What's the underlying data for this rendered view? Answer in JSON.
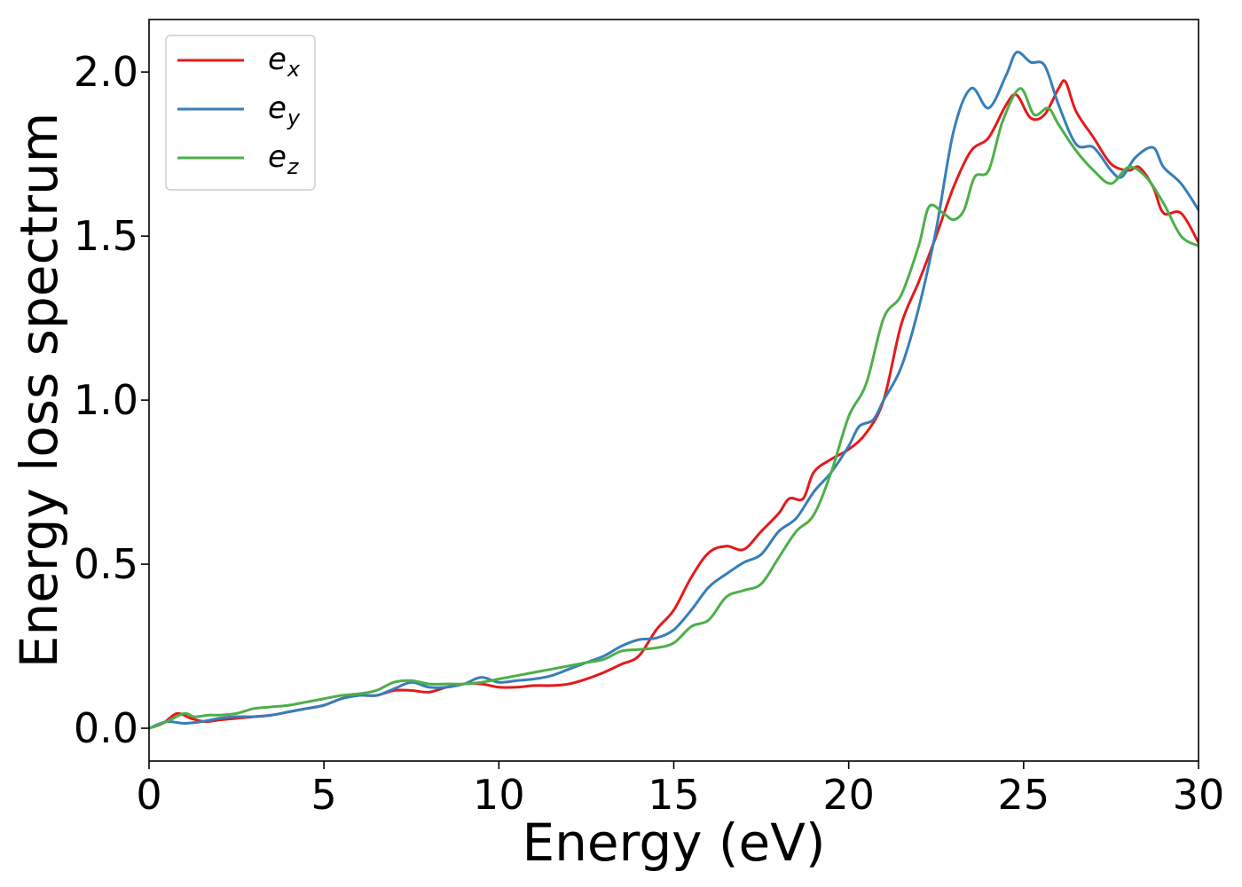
{
  "chart_data": {
    "type": "line",
    "title": "",
    "xlabel": "Energy (eV)",
    "ylabel": "Energy loss spectrum",
    "xlim": [
      0,
      30
    ],
    "ylim": [
      -0.1,
      2.16
    ],
    "xticks": [
      0,
      5,
      10,
      15,
      20,
      25,
      30
    ],
    "yticks": [
      0.0,
      0.5,
      1.0,
      1.5,
      2.0
    ],
    "xtick_labels": [
      "0",
      "5",
      "10",
      "15",
      "20",
      "25",
      "30"
    ],
    "ytick_labels": [
      "0.0",
      "0.5",
      "1.0",
      "1.5",
      "2.0"
    ],
    "grid": false,
    "legend_position": "top-left",
    "series": [
      {
        "name": "e",
        "subscript": "x",
        "color": "#e41a1c",
        "points": [
          [
            0,
            0.0
          ],
          [
            0.4,
            0.015
          ],
          [
            0.8,
            0.045
          ],
          [
            1.2,
            0.03
          ],
          [
            1.6,
            0.02
          ],
          [
            2.0,
            0.025
          ],
          [
            2.5,
            0.03
          ],
          [
            3.0,
            0.035
          ],
          [
            3.5,
            0.04
          ],
          [
            4.0,
            0.05
          ],
          [
            4.5,
            0.06
          ],
          [
            5.0,
            0.07
          ],
          [
            5.5,
            0.09
          ],
          [
            6.0,
            0.1
          ],
          [
            6.5,
            0.1
          ],
          [
            7.0,
            0.115
          ],
          [
            7.5,
            0.115
          ],
          [
            8.0,
            0.11
          ],
          [
            8.5,
            0.125
          ],
          [
            9.0,
            0.135
          ],
          [
            9.5,
            0.135
          ],
          [
            10.0,
            0.125
          ],
          [
            10.5,
            0.125
          ],
          [
            11.0,
            0.13
          ],
          [
            11.5,
            0.13
          ],
          [
            12.0,
            0.135
          ],
          [
            12.5,
            0.15
          ],
          [
            13.0,
            0.17
          ],
          [
            13.5,
            0.195
          ],
          [
            14.0,
            0.22
          ],
          [
            14.5,
            0.3
          ],
          [
            15.0,
            0.36
          ],
          [
            15.5,
            0.46
          ],
          [
            16.0,
            0.535
          ],
          [
            16.5,
            0.555
          ],
          [
            17.0,
            0.545
          ],
          [
            17.5,
            0.6
          ],
          [
            18.0,
            0.655
          ],
          [
            18.3,
            0.7
          ],
          [
            18.7,
            0.7
          ],
          [
            19.0,
            0.78
          ],
          [
            19.5,
            0.82
          ],
          [
            20.0,
            0.85
          ],
          [
            20.5,
            0.9
          ],
          [
            21.0,
            1.0
          ],
          [
            21.5,
            1.23
          ],
          [
            22.0,
            1.36
          ],
          [
            22.5,
            1.5
          ],
          [
            23.0,
            1.65
          ],
          [
            23.5,
            1.76
          ],
          [
            24.0,
            1.8
          ],
          [
            24.5,
            1.9
          ],
          [
            24.8,
            1.93
          ],
          [
            25.2,
            1.86
          ],
          [
            25.6,
            1.87
          ],
          [
            26.0,
            1.95
          ],
          [
            26.2,
            1.97
          ],
          [
            26.5,
            1.88
          ],
          [
            27.0,
            1.8
          ],
          [
            27.5,
            1.72
          ],
          [
            28.0,
            1.7
          ],
          [
            28.3,
            1.71
          ],
          [
            28.7,
            1.65
          ],
          [
            29.0,
            1.57
          ],
          [
            29.5,
            1.57
          ],
          [
            30.0,
            1.48
          ]
        ]
      },
      {
        "name": "e",
        "subscript": "y",
        "color": "#377eb8",
        "points": [
          [
            0,
            0.0
          ],
          [
            0.5,
            0.02
          ],
          [
            1.0,
            0.015
          ],
          [
            1.5,
            0.02
          ],
          [
            2.0,
            0.03
          ],
          [
            2.5,
            0.035
          ],
          [
            3.0,
            0.035
          ],
          [
            3.5,
            0.04
          ],
          [
            4.0,
            0.05
          ],
          [
            4.5,
            0.06
          ],
          [
            5.0,
            0.07
          ],
          [
            5.5,
            0.09
          ],
          [
            6.0,
            0.1
          ],
          [
            6.5,
            0.1
          ],
          [
            7.0,
            0.12
          ],
          [
            7.5,
            0.14
          ],
          [
            8.0,
            0.125
          ],
          [
            8.5,
            0.125
          ],
          [
            9.0,
            0.135
          ],
          [
            9.5,
            0.155
          ],
          [
            10.0,
            0.14
          ],
          [
            10.5,
            0.145
          ],
          [
            11.0,
            0.15
          ],
          [
            11.5,
            0.16
          ],
          [
            12.0,
            0.18
          ],
          [
            12.5,
            0.2
          ],
          [
            13.0,
            0.22
          ],
          [
            13.5,
            0.25
          ],
          [
            14.0,
            0.27
          ],
          [
            14.5,
            0.275
          ],
          [
            15.0,
            0.3
          ],
          [
            15.5,
            0.36
          ],
          [
            16.0,
            0.43
          ],
          [
            16.5,
            0.47
          ],
          [
            17.0,
            0.505
          ],
          [
            17.5,
            0.53
          ],
          [
            18.0,
            0.6
          ],
          [
            18.5,
            0.64
          ],
          [
            19.0,
            0.72
          ],
          [
            19.5,
            0.78
          ],
          [
            20.0,
            0.86
          ],
          [
            20.3,
            0.92
          ],
          [
            20.7,
            0.94
          ],
          [
            21.0,
            1.0
          ],
          [
            21.5,
            1.1
          ],
          [
            22.0,
            1.28
          ],
          [
            22.5,
            1.52
          ],
          [
            23.0,
            1.82
          ],
          [
            23.5,
            1.95
          ],
          [
            24.0,
            1.89
          ],
          [
            24.5,
            1.99
          ],
          [
            24.8,
            2.06
          ],
          [
            25.2,
            2.03
          ],
          [
            25.6,
            2.02
          ],
          [
            26.0,
            1.9
          ],
          [
            26.5,
            1.78
          ],
          [
            27.0,
            1.77
          ],
          [
            27.5,
            1.7
          ],
          [
            27.8,
            1.68
          ],
          [
            28.2,
            1.74
          ],
          [
            28.7,
            1.77
          ],
          [
            29.0,
            1.71
          ],
          [
            29.5,
            1.66
          ],
          [
            30.0,
            1.58
          ]
        ]
      },
      {
        "name": "e",
        "subscript": "z",
        "color": "#4daf4a",
        "points": [
          [
            0,
            0.0
          ],
          [
            0.5,
            0.02
          ],
          [
            1.0,
            0.045
          ],
          [
            1.3,
            0.035
          ],
          [
            1.7,
            0.04
          ],
          [
            2.0,
            0.04
          ],
          [
            2.5,
            0.045
          ],
          [
            3.0,
            0.06
          ],
          [
            3.5,
            0.065
          ],
          [
            4.0,
            0.07
          ],
          [
            4.5,
            0.08
          ],
          [
            5.0,
            0.09
          ],
          [
            5.5,
            0.1
          ],
          [
            6.0,
            0.105
          ],
          [
            6.5,
            0.115
          ],
          [
            7.0,
            0.14
          ],
          [
            7.5,
            0.145
          ],
          [
            8.0,
            0.135
          ],
          [
            8.5,
            0.135
          ],
          [
            9.0,
            0.135
          ],
          [
            9.5,
            0.14
          ],
          [
            10.0,
            0.15
          ],
          [
            10.5,
            0.16
          ],
          [
            11.0,
            0.17
          ],
          [
            11.5,
            0.18
          ],
          [
            12.0,
            0.19
          ],
          [
            12.5,
            0.2
          ],
          [
            13.0,
            0.21
          ],
          [
            13.5,
            0.235
          ],
          [
            14.0,
            0.24
          ],
          [
            14.5,
            0.245
          ],
          [
            15.0,
            0.26
          ],
          [
            15.5,
            0.31
          ],
          [
            16.0,
            0.33
          ],
          [
            16.5,
            0.4
          ],
          [
            17.0,
            0.42
          ],
          [
            17.5,
            0.44
          ],
          [
            18.0,
            0.52
          ],
          [
            18.5,
            0.6
          ],
          [
            19.0,
            0.65
          ],
          [
            19.5,
            0.78
          ],
          [
            20.0,
            0.95
          ],
          [
            20.5,
            1.05
          ],
          [
            21.0,
            1.25
          ],
          [
            21.5,
            1.32
          ],
          [
            22.0,
            1.47
          ],
          [
            22.3,
            1.59
          ],
          [
            22.7,
            1.57
          ],
          [
            23.0,
            1.55
          ],
          [
            23.3,
            1.58
          ],
          [
            23.6,
            1.68
          ],
          [
            24.0,
            1.7
          ],
          [
            24.4,
            1.85
          ],
          [
            24.9,
            1.95
          ],
          [
            25.3,
            1.87
          ],
          [
            25.7,
            1.89
          ],
          [
            26.0,
            1.84
          ],
          [
            26.5,
            1.76
          ],
          [
            27.0,
            1.7
          ],
          [
            27.5,
            1.66
          ],
          [
            28.0,
            1.71
          ],
          [
            28.5,
            1.68
          ],
          [
            29.0,
            1.6
          ],
          [
            29.5,
            1.5
          ],
          [
            30.0,
            1.47
          ]
        ]
      }
    ]
  }
}
